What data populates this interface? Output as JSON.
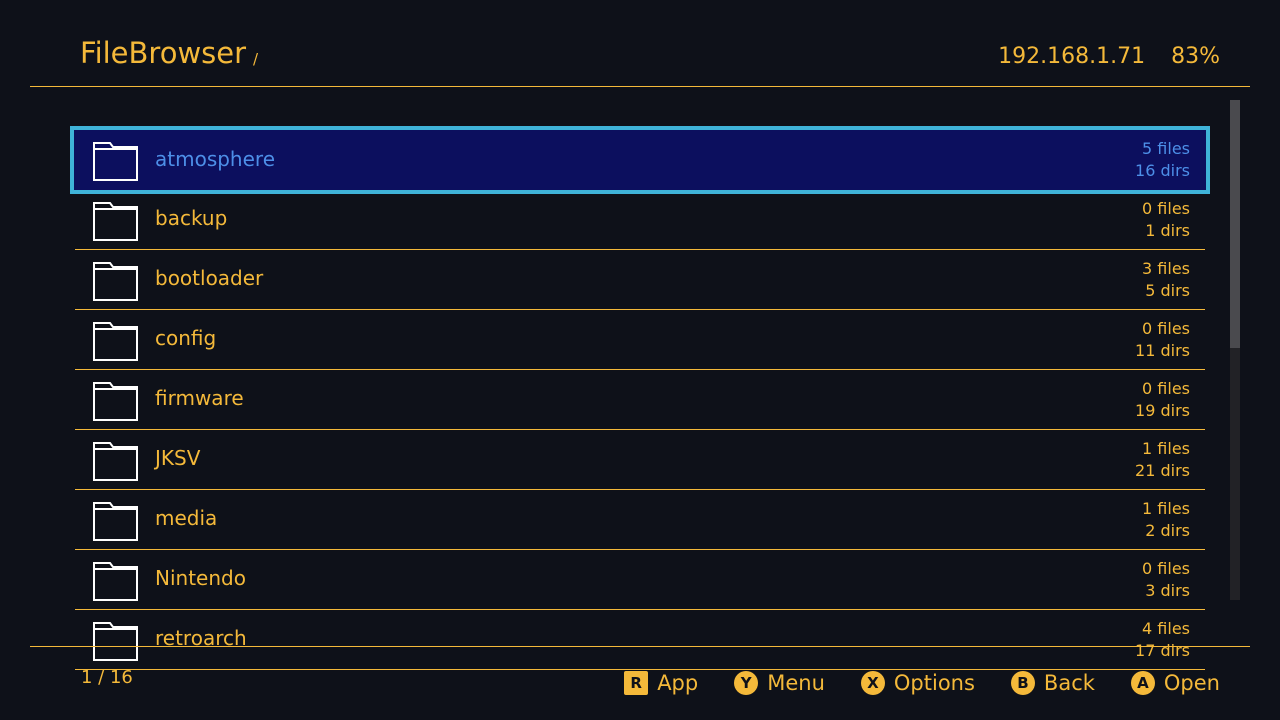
{
  "header": {
    "title": "FileBrowser",
    "path": "/",
    "ip": "192.168.1.71",
    "battery": "83%"
  },
  "files": [
    {
      "name": "atmosphere",
      "files": "5 files",
      "dirs": "16 dirs",
      "selected": true
    },
    {
      "name": "backup",
      "files": "0 files",
      "dirs": "1 dirs"
    },
    {
      "name": "bootloader",
      "files": "3 files",
      "dirs": "5 dirs"
    },
    {
      "name": "config",
      "files": "0 files",
      "dirs": "11 dirs"
    },
    {
      "name": "firmware",
      "files": "0 files",
      "dirs": "19 dirs"
    },
    {
      "name": "JKSV",
      "files": "1 files",
      "dirs": "21 dirs"
    },
    {
      "name": "media",
      "files": "1 files",
      "dirs": "2 dirs"
    },
    {
      "name": "Nintendo",
      "files": "0 files",
      "dirs": "3 dirs"
    },
    {
      "name": "retroarch",
      "files": "4 files",
      "dirs": "17 dirs"
    }
  ],
  "footer": {
    "page": "1 / 16",
    "buttons": [
      {
        "glyph": "R",
        "label": "App",
        "shape": "square"
      },
      {
        "glyph": "Y",
        "label": "Menu"
      },
      {
        "glyph": "X",
        "label": "Options"
      },
      {
        "glyph": "B",
        "label": "Back"
      },
      {
        "glyph": "A",
        "label": "Open"
      }
    ]
  },
  "colors": {
    "accent": "#f4b93a",
    "background": "#0e1119",
    "selected_bg": "#0c0f5e",
    "selected_border": "#3fb3d9",
    "selected_text": "#4d8fe8"
  }
}
